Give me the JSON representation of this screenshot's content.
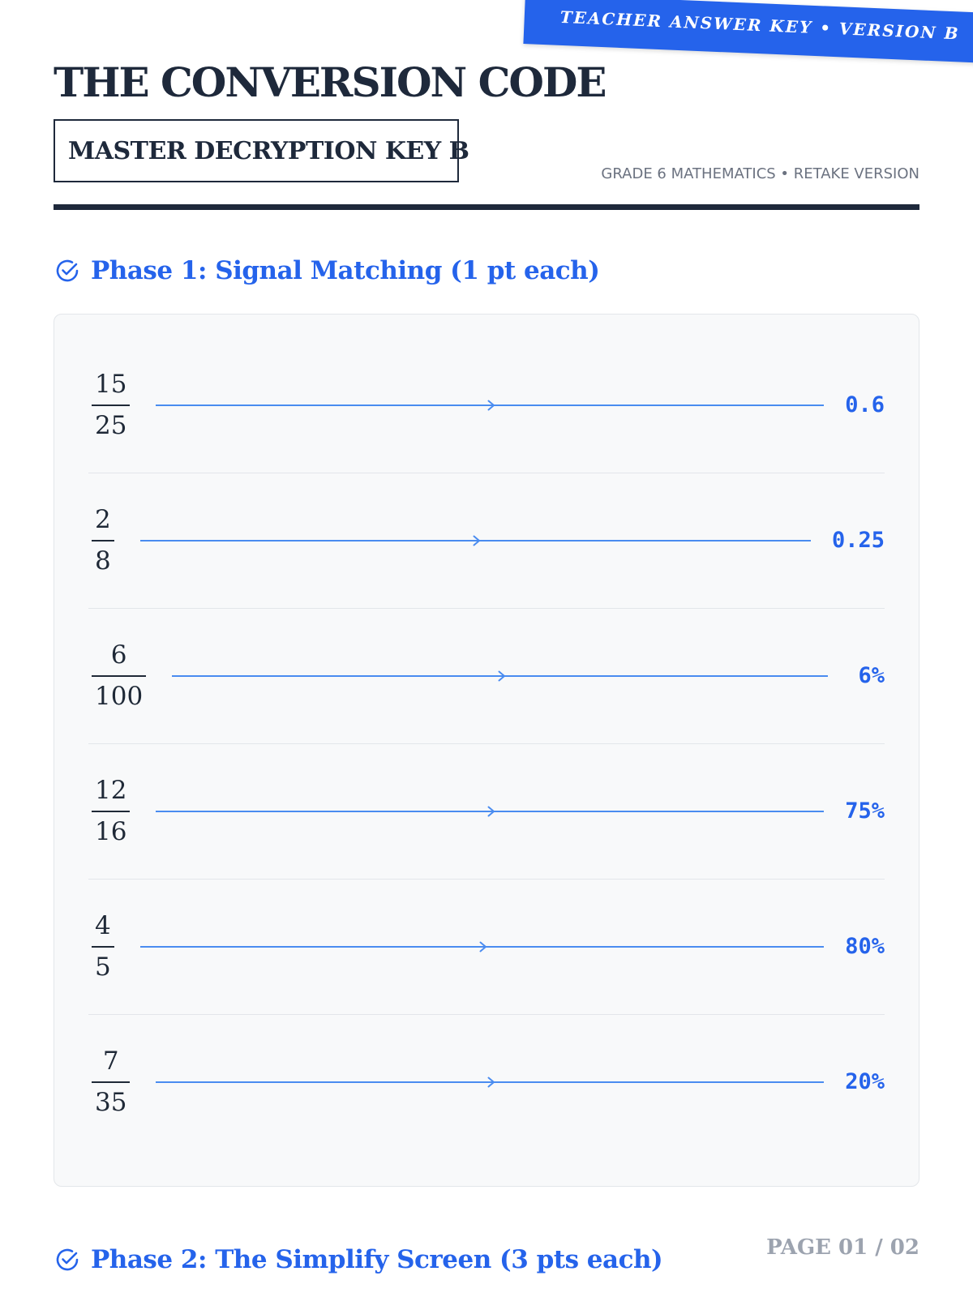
{
  "ribbon": {
    "text": "TEACHER ANSWER KEY • VERSION B"
  },
  "header": {
    "title": "THE CONVERSION CODE",
    "subtitle": "MASTER DECRYPTION KEY B",
    "meta": "GRADE 6 MATHEMATICS • RETAKE VERSION"
  },
  "phase1": {
    "heading": "Phase 1: Signal Matching (1 pt each)",
    "icon": "check-circle-icon",
    "rows": [
      {
        "numerator": "15",
        "denominator": "25",
        "answer": "0.6"
      },
      {
        "numerator": "2",
        "denominator": "8",
        "answer": "0.25"
      },
      {
        "numerator": "6",
        "denominator": "100",
        "answer": "6%"
      },
      {
        "numerator": "12",
        "denominator": "16",
        "answer": "75%"
      },
      {
        "numerator": "4",
        "denominator": "5",
        "answer": "80%"
      },
      {
        "numerator": "7",
        "denominator": "35",
        "answer": "20%"
      }
    ]
  },
  "phase2": {
    "heading": "Phase 2: The Simplify Screen (3 pts each)",
    "icon": "check-circle-icon"
  },
  "footer": {
    "page_label": "PAGE 01 / 02"
  },
  "colors": {
    "accent": "#2563eb",
    "connector": "#4a8cf0",
    "ink": "#1e293b",
    "muted": "#6b7280",
    "panel_bg": "#f8f9fa"
  }
}
